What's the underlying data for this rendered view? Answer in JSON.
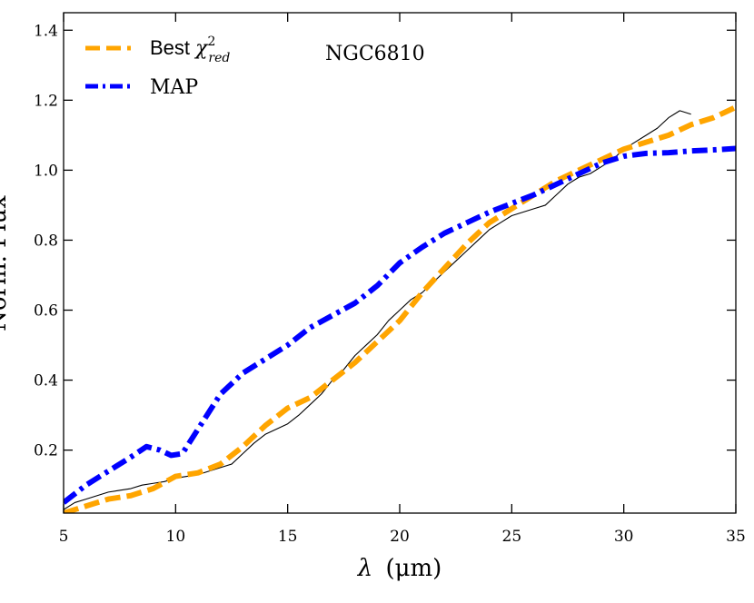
{
  "chart_data": {
    "type": "line",
    "title": "",
    "annotation": "NGC6810",
    "xlabel": "λ (μm)",
    "xlabel_parts": {
      "symbol": "λ",
      "unit": "(μm)"
    },
    "ylabel": "Norm. Flux",
    "xlim": [
      5,
      35
    ],
    "ylim": [
      0.02,
      1.45
    ],
    "xticks": [
      5,
      10,
      15,
      20,
      25,
      30,
      35
    ],
    "yticks": [
      0.2,
      0.4,
      0.6,
      0.8,
      1.0,
      1.2,
      1.4
    ],
    "xtick_labels": [
      "5",
      "10",
      "15",
      "20",
      "25",
      "30",
      "35"
    ],
    "ytick_labels": [
      "0.2",
      "0.4",
      "0.6",
      "0.8",
      "1.0",
      "1.2",
      "1.4"
    ],
    "legend_position": "top-left",
    "series": [
      {
        "name": "Best χ²red",
        "legend_label": {
          "base": "Best ",
          "chi": "χ",
          "sup": "2",
          "sub": "red"
        },
        "color": "#FFA500",
        "style": "dashed",
        "x": [
          5,
          6,
          7,
          8,
          9,
          10,
          11,
          12,
          13,
          14,
          15,
          16,
          17,
          18,
          19,
          20,
          21,
          22,
          23,
          24,
          25,
          26,
          27,
          28,
          29,
          30,
          31,
          32,
          33,
          34,
          35
        ],
        "y": [
          0.02,
          0.04,
          0.06,
          0.07,
          0.09,
          0.125,
          0.135,
          0.16,
          0.21,
          0.27,
          0.32,
          0.35,
          0.4,
          0.45,
          0.51,
          0.57,
          0.65,
          0.72,
          0.79,
          0.85,
          0.89,
          0.93,
          0.97,
          1.0,
          1.03,
          1.06,
          1.08,
          1.1,
          1.13,
          1.15,
          1.18
        ]
      },
      {
        "name": "MAP",
        "color": "#0000FF",
        "style": "dashdot",
        "x": [
          5,
          6,
          7,
          8,
          8.7,
          9.3,
          9.8,
          10.3,
          11,
          12,
          13,
          14,
          15,
          16,
          17,
          18,
          19,
          20,
          21,
          22,
          23,
          24,
          25,
          26,
          27,
          28,
          29,
          30,
          31,
          32,
          33,
          34,
          35
        ],
        "y": [
          0.05,
          0.1,
          0.14,
          0.18,
          0.21,
          0.2,
          0.185,
          0.19,
          0.26,
          0.36,
          0.42,
          0.46,
          0.5,
          0.55,
          0.585,
          0.62,
          0.67,
          0.735,
          0.78,
          0.82,
          0.85,
          0.88,
          0.905,
          0.93,
          0.96,
          0.99,
          1.02,
          1.04,
          1.048,
          1.05,
          1.055,
          1.058,
          1.062
        ]
      },
      {
        "name": "Observed spectrum",
        "color": "#000000",
        "style": "solid-thin",
        "x": [
          5.0,
          5.5,
          6.0,
          6.5,
          7.0,
          7.5,
          8.0,
          8.5,
          9.0,
          9.5,
          10.0,
          10.5,
          11.0,
          11.5,
          12.0,
          12.5,
          13.0,
          13.5,
          14.0,
          14.5,
          15.0,
          15.5,
          16.0,
          16.5,
          17.0,
          17.5,
          18.0,
          18.5,
          19.0,
          19.5,
          20.0,
          20.5,
          21.0,
          21.5,
          22.0,
          22.5,
          23.0,
          23.5,
          24.0,
          24.5,
          25.0,
          25.5,
          26.0,
          26.5,
          27.0,
          27.5,
          28.0,
          28.5,
          29.0,
          29.5,
          30.0,
          30.5,
          31.0,
          31.5,
          32.0,
          32.5,
          33.0
        ],
        "y": [
          0.03,
          0.05,
          0.06,
          0.07,
          0.08,
          0.085,
          0.09,
          0.1,
          0.105,
          0.11,
          0.12,
          0.125,
          0.13,
          0.14,
          0.15,
          0.16,
          0.19,
          0.22,
          0.245,
          0.26,
          0.275,
          0.3,
          0.33,
          0.36,
          0.4,
          0.43,
          0.47,
          0.5,
          0.53,
          0.57,
          0.6,
          0.63,
          0.65,
          0.68,
          0.71,
          0.74,
          0.77,
          0.8,
          0.83,
          0.85,
          0.87,
          0.88,
          0.89,
          0.9,
          0.93,
          0.96,
          0.98,
          0.99,
          1.01,
          1.03,
          1.06,
          1.08,
          1.1,
          1.12,
          1.15,
          1.17,
          1.16
        ]
      }
    ]
  }
}
